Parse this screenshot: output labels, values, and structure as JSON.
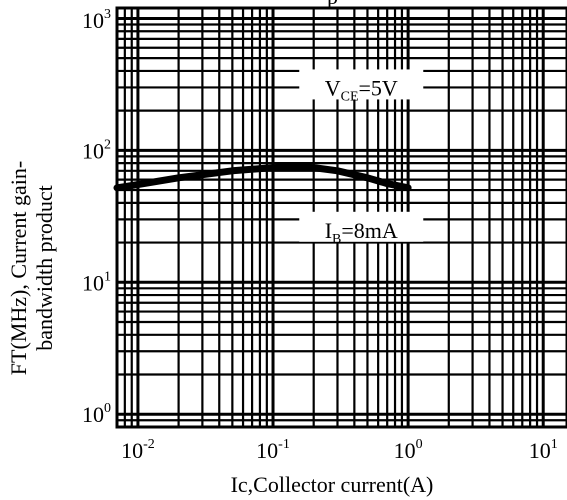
{
  "chart_data": {
    "type": "line",
    "xscale": "log",
    "yscale": "log",
    "xlim": [
      0.007,
      15
    ],
    "ylim": [
      0.8,
      1200
    ],
    "grid": true,
    "x_ticks": [
      {
        "value": 0.01,
        "base": "10",
        "exp": "-2"
      },
      {
        "value": 0.1,
        "base": "10",
        "exp": "-1"
      },
      {
        "value": 1,
        "base": "10",
        "exp": "0"
      },
      {
        "value": 10,
        "base": "10",
        "exp": "1"
      }
    ],
    "y_ticks": [
      {
        "value": 1,
        "base": "10",
        "exp": "0"
      },
      {
        "value": 10,
        "base": "10",
        "exp": "1"
      },
      {
        "value": 100,
        "base": "10",
        "exp": "2"
      },
      {
        "value": 1000,
        "base": "10",
        "exp": "3"
      }
    ],
    "xlabel": "Ic,Collector current(A)",
    "ylabel_lines": [
      "FT(MHz), Current gain-",
      "bandwidth product"
    ],
    "series": [
      {
        "x": [
          0.007,
          0.01,
          0.02,
          0.05,
          0.1,
          0.15,
          0.2,
          0.3,
          0.5,
          0.7,
          1.0
        ],
        "y": [
          52,
          55,
          62,
          70,
          74,
          75,
          74,
          70,
          62,
          56,
          52
        ]
      }
    ],
    "annotations": [
      {
        "main": "V",
        "sub": "CE",
        "rest": "=5V",
        "x": 0.45,
        "y": 300
      },
      {
        "main": "I",
        "sub": "B",
        "rest": "=8mA",
        "x": 0.45,
        "y": 25
      }
    ],
    "title_fragment": "p",
    "colors": {
      "line": "#000000",
      "grid": "#000000",
      "background": "#ffffff"
    }
  }
}
